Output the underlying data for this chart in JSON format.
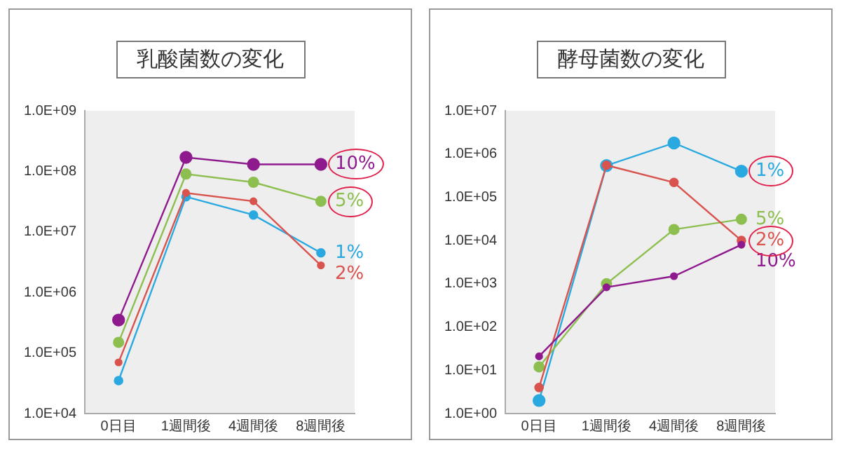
{
  "chart_data": [
    {
      "type": "line",
      "title": "乳酸菌数の変化",
      "categories": [
        "0日目",
        "1週間後",
        "4週間後",
        "8週間後"
      ],
      "log": "y",
      "ylim": [
        10000,
        1000000000
      ],
      "yticks": [
        {
          "value": 10000,
          "label": "1.0E+04"
        },
        {
          "value": 100000,
          "label": "1.0E+05"
        },
        {
          "value": 1000000,
          "label": "1.0E+06"
        },
        {
          "value": 10000000,
          "label": "1.0E+07"
        },
        {
          "value": 100000000,
          "label": "1.0E+08"
        },
        {
          "value": 1000000000,
          "label": "1.0E+09"
        }
      ],
      "marker": "circle",
      "legend": false,
      "grid": false,
      "series": [
        {
          "name": "10%",
          "color": "#8e1a8e",
          "values": [
            350000,
            170000000,
            130000000,
            130000000
          ]
        },
        {
          "name": "5%",
          "color": "#8cbf4f",
          "values": [
            150000,
            90000000,
            66000000,
            32000000
          ]
        },
        {
          "name": "1%",
          "color": "#2aa9e0",
          "values": [
            35000,
            38000000,
            19000000,
            4500000
          ]
        },
        {
          "name": "2%",
          "color": "#d9534f",
          "values": [
            70000,
            44000000,
            32000000,
            2800000
          ]
        }
      ]
    },
    {
      "type": "line",
      "title": "酵母菌数の変化",
      "categories": [
        "0日目",
        "1週間後",
        "4週間後",
        "8週間後"
      ],
      "log": "y",
      "ylim": [
        1,
        10000000
      ],
      "yticks": [
        {
          "value": 1,
          "label": "1.0E+00"
        },
        {
          "value": 10,
          "label": "1.0E+01"
        },
        {
          "value": 100,
          "label": "1.0E+02"
        },
        {
          "value": 1000,
          "label": "1.0E+03"
        },
        {
          "value": 10000,
          "label": "1.0E+04"
        },
        {
          "value": 100000,
          "label": "1.0E+05"
        },
        {
          "value": 1000000,
          "label": "1.0E+06"
        },
        {
          "value": 10000000,
          "label": "1.0E+07"
        }
      ],
      "marker": "circle",
      "legend": false,
      "grid": false,
      "series": [
        {
          "name": "1%",
          "color": "#2aa9e0",
          "values": [
            2,
            540000,
            1800000,
            400000
          ]
        },
        {
          "name": "5%",
          "color": "#8cbf4f",
          "values": [
            12,
            1000,
            18000,
            31000
          ]
        },
        {
          "name": "2%",
          "color": "#d9534f",
          "values": [
            4,
            550000,
            220000,
            10000
          ]
        },
        {
          "name": "10%",
          "color": "#8e1a8e",
          "values": [
            21,
            830,
            1500,
            8000
          ]
        }
      ]
    }
  ]
}
